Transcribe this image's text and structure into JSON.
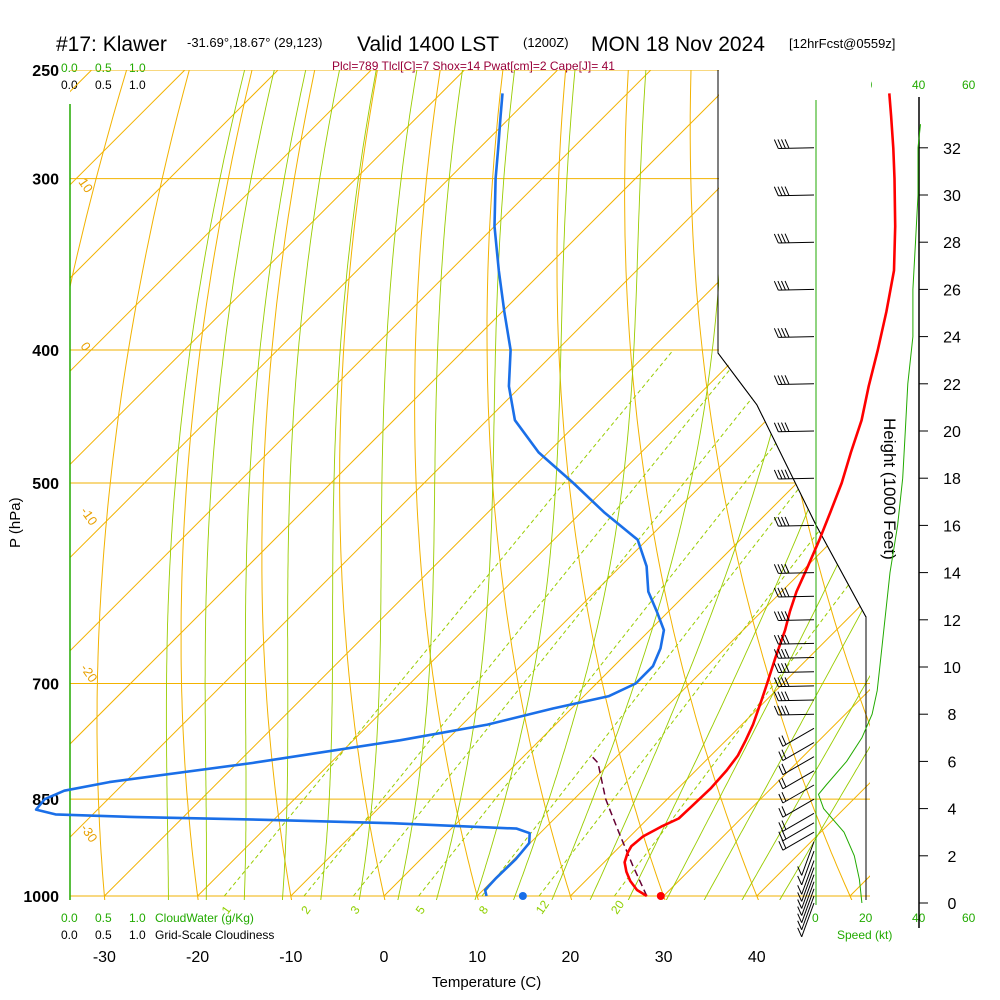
{
  "header": {
    "station": "#17: Klawer",
    "location": "-31.69°,18.67° (29,123)",
    "valid_main": "Valid 1400 LST",
    "valid_utc": "(1200Z)",
    "date": "MON 18 Nov 2024",
    "forecast": "[12hrFcst@0559z]"
  },
  "indices_text": "Plcl=789 Tlcl[C]=7 Shox=14 Pwat[cm]=2 Cape[J]= 41",
  "scales": {
    "cloudwater_top": [
      "0.0",
      "0.5",
      "1.0"
    ],
    "cloudiness_top": [
      "0.0",
      "0.5",
      "1.0"
    ],
    "cloudwater_bottom": [
      "0.0",
      "0.5",
      "1.0"
    ],
    "cloudiness_bottom": [
      "0.0",
      "0.5",
      "1.0"
    ],
    "cloudwater_label": "CloudWater (g/Kg)",
    "cloudiness_label": "Grid-Scale Cloudiness",
    "speed_ticks": [
      "0",
      "20",
      "40",
      "60"
    ],
    "speed_ticks_green": [
      "20",
      "60"
    ],
    "speed_label": "Speed (kt)"
  },
  "colors": {
    "temperature": "#ff0000",
    "dewpoint": "#1a6fe8",
    "isotherm": "#f2b200",
    "dry_adiabat": "#f2b200",
    "moist_adiabat": "#99cc00",
    "mixing_ratio": "#99cc00",
    "parcel": "#660033",
    "wind_speed": "#22aa00",
    "cloud_scale": "#22aa00"
  },
  "chart_data": {
    "type": "skew-t log-p",
    "xlabel": "Temperature (C)",
    "ylabel": "P (hPa)",
    "y2label": "Height (1000 Feet)",
    "x_ticks": [
      -30,
      -20,
      -10,
      0,
      10,
      20,
      30,
      40
    ],
    "p_ticks": [
      250,
      300,
      400,
      500,
      700,
      850,
      1000
    ],
    "height_ticks": [
      0,
      2,
      4,
      6,
      8,
      10,
      12,
      14,
      16,
      18,
      20,
      22,
      24,
      26,
      28,
      30,
      32
    ],
    "isotherm_labels": [
      "0",
      "10",
      "20",
      "30"
    ],
    "dry_adiabat_labels": [
      "10",
      "0",
      "-10",
      "-20",
      "-30"
    ],
    "mixing_ratio_labels": [
      "1",
      "2",
      "3",
      "5",
      "8",
      "12",
      "20"
    ],
    "temperature": {
      "name": "Temperature",
      "points": [
        [
          1000,
          28.2
        ],
        [
          990,
          26.5
        ],
        [
          975,
          24.8
        ],
        [
          960,
          23.4
        ],
        [
          945,
          22.2
        ],
        [
          930,
          21.5
        ],
        [
          920,
          21.2
        ],
        [
          905,
          21.4
        ],
        [
          890,
          22.3
        ],
        [
          878,
          23.3
        ],
        [
          860,
          23.4
        ],
        [
          835,
          23.5
        ],
        [
          810,
          23.3
        ],
        [
          790,
          22.9
        ],
        [
          770,
          22.1
        ],
        [
          750,
          21.2
        ],
        [
          720,
          19.5
        ],
        [
          700,
          18.3
        ],
        [
          670,
          16.4
        ],
        [
          640,
          14.5
        ],
        [
          620,
          13.0
        ],
        [
          600,
          11.6
        ],
        [
          575,
          10.1
        ],
        [
          550,
          8.5
        ],
        [
          525,
          6.7
        ],
        [
          500,
          4.8
        ],
        [
          475,
          2.5
        ],
        [
          450,
          0.2
        ],
        [
          425,
          -2.7
        ],
        [
          400,
          -5.6
        ],
        [
          375,
          -8.8
        ],
        [
          350,
          -12.4
        ],
        [
          325,
          -17.0
        ],
        [
          300,
          -22.2
        ],
        [
          285,
          -25.6
        ],
        [
          270,
          -29.3
        ],
        [
          260,
          -31.9
        ]
      ]
    },
    "dewpoint": {
      "name": "Dewpoint",
      "points": [
        [
          1000,
          11.0
        ],
        [
          990,
          10.2
        ],
        [
          970,
          10.1
        ],
        [
          940,
          10.2
        ],
        [
          915,
          9.9
        ],
        [
          900,
          8.9
        ],
        [
          893,
          7.0
        ],
        [
          885,
          -7.0
        ],
        [
          880,
          -21.0
        ],
        [
          876,
          -35.0
        ],
        [
          872,
          -44.0
        ],
        [
          865,
          -46.6
        ],
        [
          850,
          -46.8
        ],
        [
          838,
          -45.6
        ],
        [
          826,
          -41.7
        ],
        [
          800,
          -28.4
        ],
        [
          770,
          -15.0
        ],
        [
          750,
          -7.3
        ],
        [
          730,
          -2.0
        ],
        [
          715,
          2.7
        ],
        [
          700,
          4.2
        ],
        [
          680,
          4.2
        ],
        [
          660,
          3.1
        ],
        [
          640,
          1.5
        ],
        [
          620,
          -1.3
        ],
        [
          600,
          -4.3
        ],
        [
          575,
          -7.2
        ],
        [
          550,
          -11.0
        ],
        [
          525,
          -17.6
        ],
        [
          500,
          -24.0
        ],
        [
          475,
          -31.0
        ],
        [
          450,
          -37.0
        ],
        [
          425,
          -41.3
        ],
        [
          400,
          -45.0
        ],
        [
          375,
          -49.8
        ],
        [
          350,
          -54.8
        ],
        [
          325,
          -60.0
        ],
        [
          300,
          -65.0
        ],
        [
          285,
          -68.0
        ],
        [
          270,
          -71.2
        ],
        [
          260,
          -73.4
        ]
      ]
    },
    "parcel": {
      "name": "Parcel",
      "points": [
        [
          1000,
          28.2
        ],
        [
          950,
          23.4
        ],
        [
          900,
          18.5
        ],
        [
          850,
          13.4
        ],
        [
          800,
          8.7
        ],
        [
          789,
          7.0
        ]
      ]
    },
    "surface_markers": {
      "dewpoint_c": 14.9,
      "temperature_c": 29.7,
      "pressure_hpa": 1000
    },
    "wind_speed_profile": {
      "name": "Speed (kt)",
      "points": [
        [
          0,
          18
        ],
        [
          1,
          17
        ],
        [
          2,
          15
        ],
        [
          3,
          11
        ],
        [
          4,
          3
        ],
        [
          4.6,
          1
        ],
        [
          5,
          4
        ],
        [
          6,
          12
        ],
        [
          7,
          18
        ],
        [
          8,
          22
        ],
        [
          9,
          24
        ],
        [
          10,
          25
        ],
        [
          12,
          27
        ],
        [
          14,
          29
        ],
        [
          16,
          32
        ],
        [
          18,
          34
        ],
        [
          20,
          35
        ],
        [
          22,
          36
        ],
        [
          24,
          38
        ],
        [
          26,
          38
        ],
        [
          28,
          39
        ],
        [
          30,
          40
        ],
        [
          32,
          40
        ],
        [
          33,
          41
        ]
      ]
    },
    "wind_barb_heights": [
      0,
      0.3,
      0.6,
      0.9,
      1.2,
      1.5,
      1.8,
      2.2,
      2.6,
      3.0,
      3.4,
      3.8,
      4.4,
      5.0,
      5.6,
      6.2,
      6.8,
      7.4,
      8.0,
      8.6,
      9.2,
      9.8,
      10.4,
      11.0,
      12.0,
      13.0,
      14.0,
      16.0,
      18.0,
      20.0,
      22.0,
      24.0,
      26.0,
      28.0,
      30.0,
      32.0
    ]
  }
}
